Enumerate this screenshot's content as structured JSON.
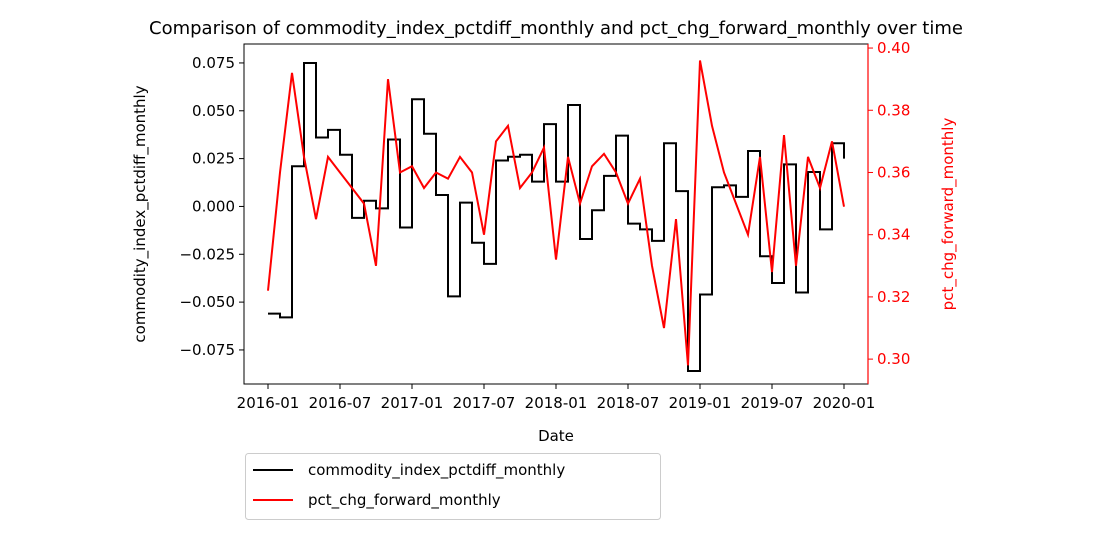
{
  "chart_data": {
    "type": "line",
    "title": "Comparison of commodity_index_pctdiff_monthly and pct_chg_forward_monthly over time",
    "xlabel": "Date",
    "ylabel": "commodity_index_pctdiff_monthly",
    "y2label": "pct_chg_forward_monthly",
    "y2color": "red",
    "x": [
      "2016-01",
      "2016-02",
      "2016-03",
      "2016-04",
      "2016-05",
      "2016-06",
      "2016-07",
      "2016-08",
      "2016-09",
      "2016-10",
      "2016-11",
      "2016-12",
      "2017-01",
      "2017-02",
      "2017-03",
      "2017-04",
      "2017-05",
      "2017-06",
      "2017-07",
      "2017-08",
      "2017-09",
      "2017-10",
      "2017-11",
      "2017-12",
      "2018-01",
      "2018-02",
      "2018-03",
      "2018-04",
      "2018-05",
      "2018-06",
      "2018-07",
      "2018-08",
      "2018-09",
      "2018-10",
      "2018-11",
      "2018-12",
      "2019-01",
      "2019-02",
      "2019-03",
      "2019-04",
      "2019-05",
      "2019-06",
      "2019-07",
      "2019-08",
      "2019-09",
      "2019-10",
      "2019-11",
      "2019-12",
      "2020-01"
    ],
    "xlim": [
      "2015-11",
      "2020-03"
    ],
    "xticks": [
      "2016-01",
      "2016-07",
      "2017-01",
      "2017-07",
      "2018-01",
      "2018-07",
      "2019-01",
      "2019-07",
      "2020-01"
    ],
    "ylim": [
      -0.0928,
      0.0849
    ],
    "yticks": [
      {
        "value": -0.075,
        "label": "−0.075"
      },
      {
        "value": -0.05,
        "label": "−0.050"
      },
      {
        "value": -0.025,
        "label": "−0.025"
      },
      {
        "value": 0,
        "label": "0.000"
      },
      {
        "value": 0.025,
        "label": "0.025"
      },
      {
        "value": 0.05,
        "label": "0.050"
      },
      {
        "value": 0.075,
        "label": "0.075"
      }
    ],
    "y2lim": [
      0.292,
      0.4013
    ],
    "y2ticks": [
      {
        "value": 0.3,
        "label": "0.30"
      },
      {
        "value": 0.32,
        "label": "0.32"
      },
      {
        "value": 0.34,
        "label": "0.34"
      },
      {
        "value": 0.36,
        "label": "0.36"
      },
      {
        "value": 0.38,
        "label": "0.38"
      },
      {
        "value": 0.4,
        "label": "0.40"
      }
    ],
    "legend": "lower left outside",
    "series": [
      {
        "name": "commodity_index_pctdiff_monthly",
        "color": "black",
        "drawstyle": "steps-post",
        "values": [
          -0.056,
          -0.058,
          0.021,
          0.075,
          0.036,
          0.04,
          0.027,
          -0.006,
          0.003,
          -0.001,
          0.035,
          -0.011,
          0.056,
          0.038,
          0.006,
          -0.047,
          0.002,
          -0.019,
          -0.03,
          0.024,
          0.026,
          0.027,
          0.013,
          0.043,
          0.013,
          0.053,
          -0.017,
          -0.002,
          0.016,
          0.037,
          -0.009,
          -0.012,
          -0.018,
          0.033,
          0.008,
          -0.086,
          -0.046,
          0.01,
          0.011,
          0.005,
          0.029,
          -0.026,
          -0.04,
          0.022,
          -0.045,
          0.018,
          -0.012,
          0.033,
          0.025
        ]
      },
      {
        "name": "pct_chg_forward_monthly",
        "color": "red",
        "axis": "y2",
        "values": [
          0.322,
          0.36,
          0.392,
          0.365,
          0.345,
          0.365,
          0.36,
          0.355,
          0.35,
          0.33,
          0.39,
          0.36,
          0.362,
          0.355,
          0.36,
          0.358,
          0.365,
          0.36,
          0.34,
          0.37,
          0.375,
          0.355,
          0.36,
          0.368,
          0.332,
          0.365,
          0.35,
          0.362,
          0.366,
          0.36,
          0.35,
          0.358,
          0.33,
          0.31,
          0.345,
          0.298,
          0.396,
          0.375,
          0.36,
          0.35,
          0.34,
          0.365,
          0.328,
          0.372,
          0.33,
          0.365,
          0.355,
          0.37,
          0.349
        ]
      }
    ]
  }
}
